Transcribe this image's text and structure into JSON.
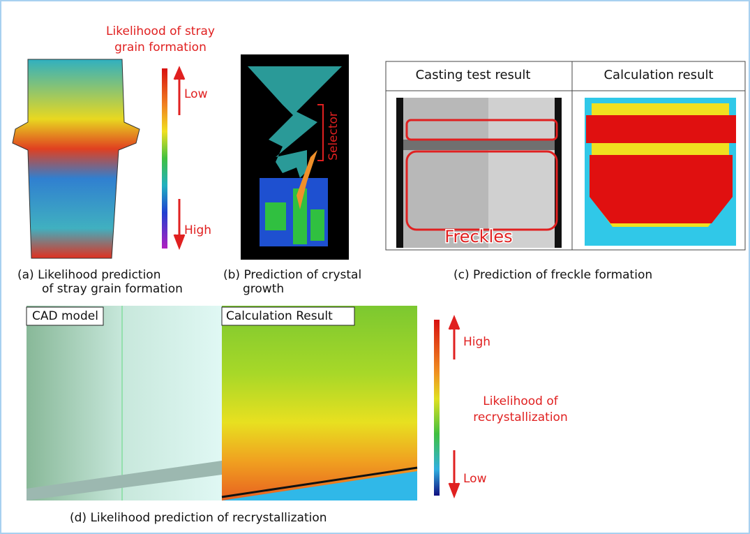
{
  "panel_a": {
    "heading": [
      "Likelihood of stray",
      "grain formation"
    ],
    "low": "Low",
    "high": "High",
    "caption": [
      "(a) Likelihood prediction",
      "of stray grain formation"
    ]
  },
  "panel_b": {
    "label": "Selector",
    "caption": [
      "(b) Prediction of crystal",
      "growth"
    ]
  },
  "panel_c": {
    "headers": [
      "Casting test result",
      "Calculation result"
    ],
    "label": "Freckles",
    "caption": "(c) Prediction of freckle formation"
  },
  "panel_d": {
    "tabs": [
      "CAD model",
      "Calculation Result"
    ],
    "high": "High",
    "legend": [
      "Likelihood of",
      "recrystallization"
    ],
    "low": "Low",
    "caption": "(d) Likelihood prediction of recrystallization"
  }
}
